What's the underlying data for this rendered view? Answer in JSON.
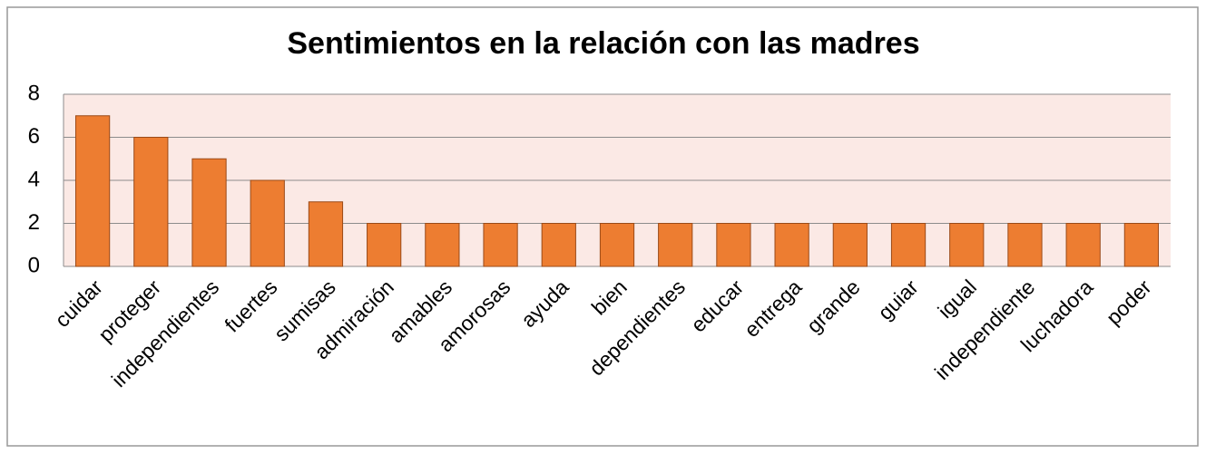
{
  "chart_data": {
    "type": "bar",
    "title": "Sentimientos en la relación con las madres",
    "categories": [
      "cuidar",
      "proteger",
      "independientes",
      "fuertes",
      "sumisas",
      "admiración",
      "amables",
      "amorosas",
      "ayuda",
      "bien",
      "dependientes",
      "educar",
      "entrega",
      "grande",
      "guiar",
      "igual",
      "independiente",
      "luchadora",
      "poder"
    ],
    "values": [
      7,
      6,
      5,
      4,
      3,
      2,
      2,
      2,
      2,
      2,
      2,
      2,
      2,
      2,
      2,
      2,
      2,
      2,
      2
    ],
    "color": "#ed7d31",
    "ylim": [
      0,
      8
    ],
    "yticks": [
      0,
      2,
      4,
      6,
      8
    ],
    "grid": true
  }
}
